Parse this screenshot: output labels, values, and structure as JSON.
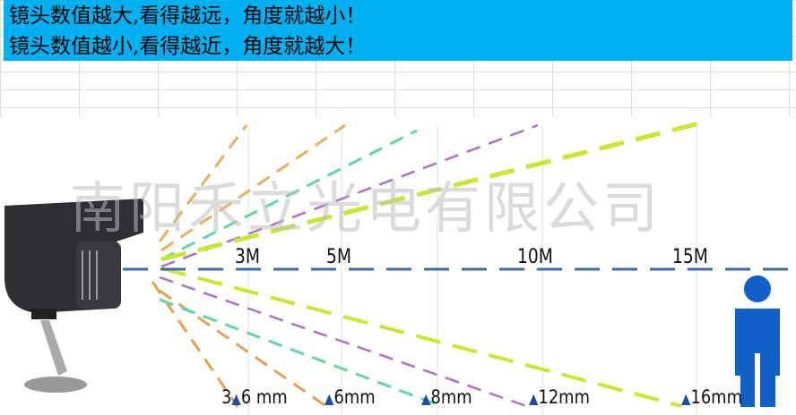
{
  "banner": {
    "line1": "镜头数值越大,看得越远，角度就越小！",
    "line2": "镜头数值越小,看得越近，角度就越大！",
    "color": "#00b0f0"
  },
  "watermark": "南阳禾立光电有限公司",
  "distances": [
    "3M",
    "5M",
    "10M",
    "15M"
  ],
  "lenses": [
    {
      "prefix": "3",
      "label": "6 mm"
    },
    {
      "prefix": "",
      "label": "6mm"
    },
    {
      "prefix": "",
      "label": "8mm"
    },
    {
      "prefix": "",
      "label": "12mm"
    },
    {
      "prefix": "",
      "label": "16mm"
    }
  ],
  "marker_icon": "▲",
  "colors": {
    "lens_3_6": "#e8b060",
    "lens_6": "#e8a050",
    "lens_8": "#5ed8a0",
    "lens_12": "#b070c8",
    "lens_16": "#c8e830",
    "axis": "#3a6ea5",
    "person": "#1060c8"
  }
}
